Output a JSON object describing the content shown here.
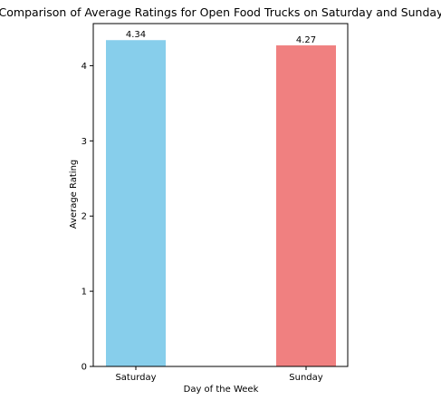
{
  "chart_data": {
    "type": "bar",
    "title": "Comparison of Average Ratings for Open Food Trucks on Saturday and Sunday",
    "xlabel": "Day of the Week",
    "ylabel": "Average Rating",
    "categories": [
      "Saturday",
      "Sunday"
    ],
    "values": [
      4.34,
      4.27
    ],
    "value_labels": [
      "4.34",
      "4.27"
    ],
    "colors": [
      "#87ceeb",
      "#f08080"
    ],
    "ylim": [
      0,
      4.56
    ],
    "yticks": [
      0,
      1,
      2,
      3,
      4
    ],
    "grid": false,
    "legend": "none"
  }
}
